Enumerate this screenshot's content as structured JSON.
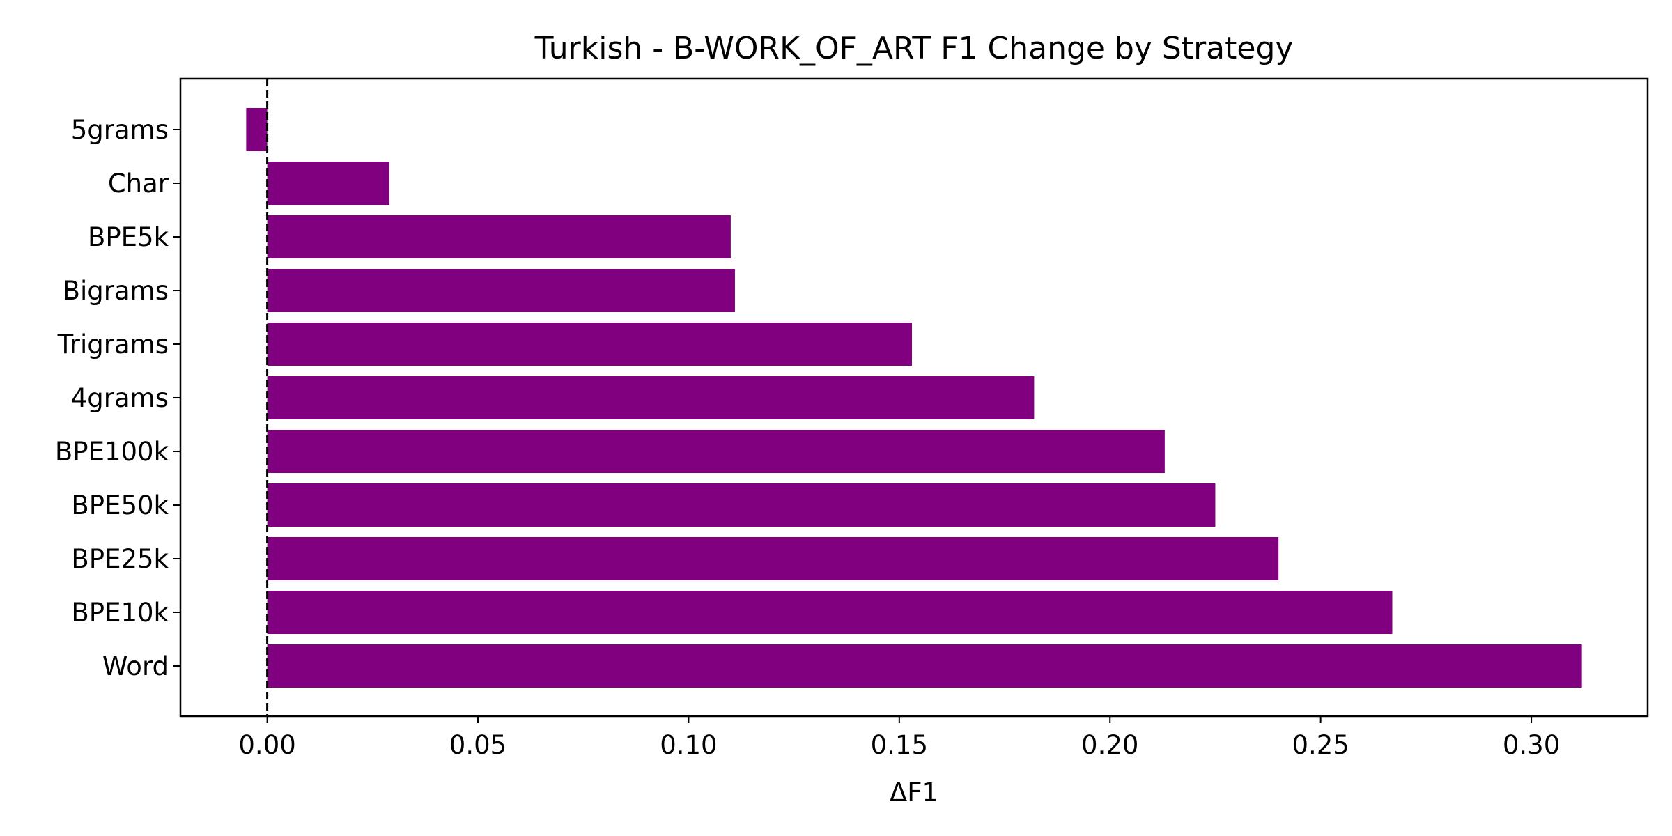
{
  "chart_data": {
    "type": "bar",
    "orientation": "horizontal",
    "title": "Turkish - B-WORK_OF_ART F1 Change by Strategy",
    "xlabel": "ΔF1",
    "ylabel": "",
    "categories": [
      "5grams",
      "Char",
      "BPE5k",
      "Bigrams",
      "Trigrams",
      "4grams",
      "BPE100k",
      "BPE50k",
      "BPE25k",
      "BPE10k",
      "Word"
    ],
    "values": [
      -0.005,
      0.029,
      0.11,
      0.111,
      0.153,
      0.182,
      0.213,
      0.225,
      0.24,
      0.267,
      0.312
    ],
    "xlim": [
      -0.0206,
      0.3276
    ],
    "xticks": [
      0.0,
      0.05,
      0.1,
      0.15,
      0.2,
      0.25,
      0.3
    ],
    "xtick_labels": [
      "0.00",
      "0.05",
      "0.10",
      "0.15",
      "0.20",
      "0.25",
      "0.30"
    ],
    "grid": false,
    "reference_line": {
      "x": 0.0,
      "style": "dashed",
      "color": "#000000"
    },
    "bar_color": "#800080"
  }
}
